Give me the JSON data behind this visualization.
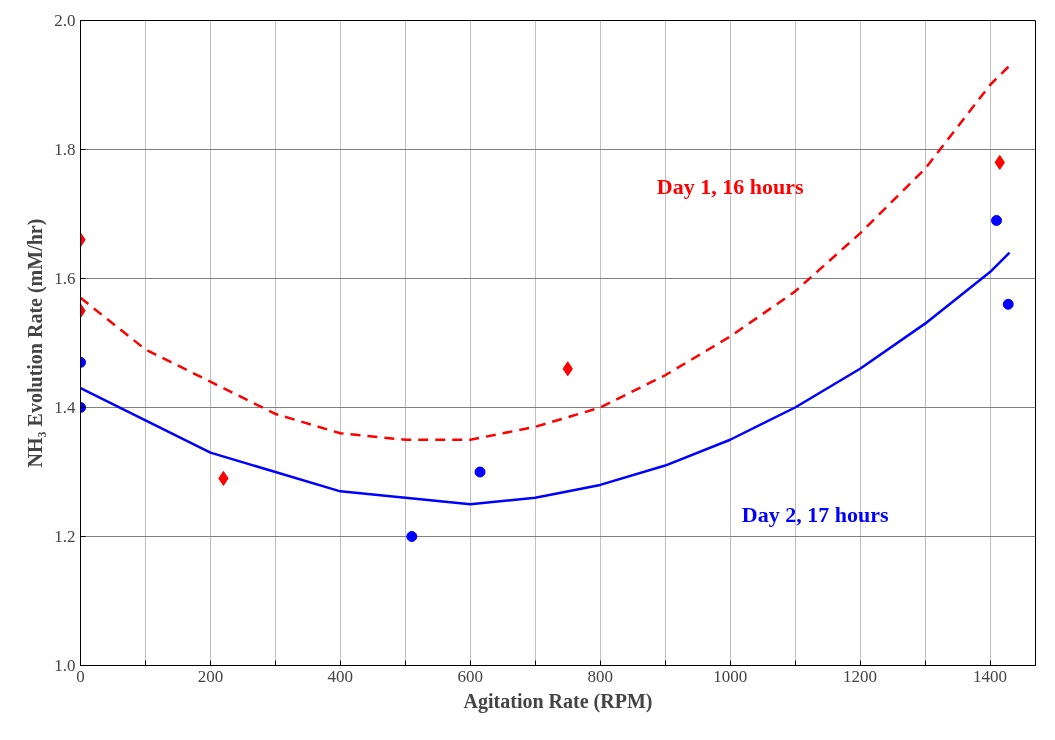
{
  "chart_data": {
    "type": "scatter",
    "xlabel": "Agitation Rate (RPM)",
    "ylabel": "NH₃ Evolution Rate (mM/hr)",
    "xlim": [
      0,
      1470
    ],
    "ylim": [
      1.0,
      2.0
    ],
    "xticks": [
      0,
      {
        "value": 100,
        "label": null
      },
      200,
      {
        "value": 300,
        "label": null
      },
      400,
      {
        "value": 500,
        "label": null
      },
      600,
      {
        "value": 700,
        "label": null
      },
      800,
      {
        "value": 900,
        "label": null
      },
      1000,
      {
        "value": 1100,
        "label": null
      },
      1200,
      {
        "value": 1300,
        "label": null
      },
      1400
    ],
    "yticks": [
      {
        "value": 1.0,
        "label": "1.0"
      },
      1.2,
      1.4,
      1.6,
      1.8,
      {
        "value": 2.0,
        "label": "2.0"
      }
    ],
    "grid": true,
    "series": [
      {
        "color": "#ff0000",
        "marker": "diamond",
        "x": [
          0,
          0,
          220,
          750,
          1415
        ],
        "values": [
          1.66,
          1.55,
          1.29,
          1.46,
          1.78
        ]
      },
      {
        "color": "#0000ff",
        "marker": "circle",
        "x": [
          0,
          0,
          510,
          615,
          1410,
          1428
        ],
        "values": [
          1.47,
          1.4,
          1.2,
          1.3,
          1.69,
          1.56
        ]
      },
      {
        "type": "line",
        "color": "#ff0000",
        "line_style": "dashed",
        "x": [
          0,
          100,
          200,
          300,
          400,
          500,
          600,
          700,
          800,
          900,
          1000,
          1100,
          1200,
          1300,
          1400,
          1430
        ],
        "values": [
          1.57,
          1.49,
          1.44,
          1.39,
          1.36,
          1.35,
          1.35,
          1.37,
          1.4,
          1.45,
          1.51,
          1.58,
          1.67,
          1.77,
          1.9,
          1.93
        ]
      },
      {
        "type": "line",
        "color": "#0000ff",
        "line_style": "solid",
        "x": [
          0,
          100,
          200,
          300,
          400,
          500,
          600,
          700,
          800,
          900,
          1000,
          1100,
          1200,
          1300,
          1400,
          1430
        ],
        "values": [
          1.43,
          1.38,
          1.33,
          1.3,
          1.27,
          1.26,
          1.25,
          1.26,
          1.28,
          1.31,
          1.35,
          1.4,
          1.46,
          1.53,
          1.61,
          1.64
        ]
      }
    ],
    "annotations": [
      "Day 1, 16 hours",
      "Day 2, 17 hours"
    ]
  }
}
